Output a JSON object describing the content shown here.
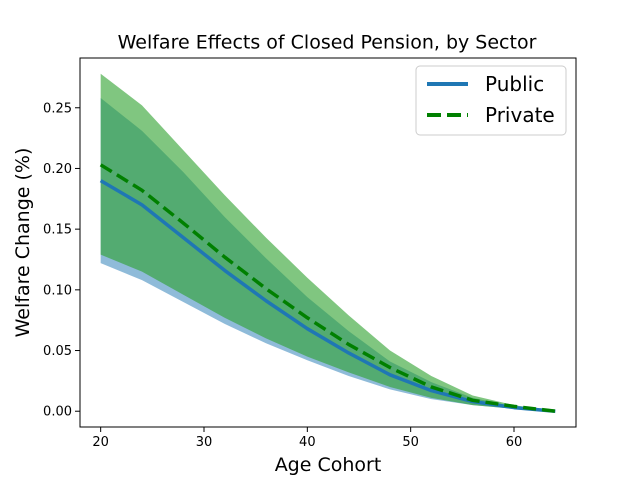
{
  "chart_data": {
    "type": "line",
    "title": "Welfare Effects of Closed Pension, by Sector",
    "xlabel": "Age Cohort",
    "ylabel": "Welfare Change (%)",
    "xlim": [
      18,
      66
    ],
    "ylim": [
      -0.013,
      0.291
    ],
    "xticks": [
      20,
      30,
      40,
      50,
      60
    ],
    "yticks": [
      0.0,
      0.05,
      0.1,
      0.15,
      0.2,
      0.25
    ],
    "ytick_labels": [
      "0.00",
      "0.05",
      "0.10",
      "0.15",
      "0.20",
      "0.25"
    ],
    "legend_position": "top-right",
    "x": [
      20,
      24,
      28,
      32,
      36,
      40,
      44,
      48,
      52,
      56,
      60,
      64
    ],
    "series": [
      {
        "name": "Public",
        "color": "#1f77b4",
        "style": "solid",
        "values": [
          0.19,
          0.17,
          0.143,
          0.116,
          0.091,
          0.068,
          0.048,
          0.03,
          0.017,
          0.008,
          0.003,
          0.0
        ],
        "band_low": [
          0.122,
          0.108,
          0.09,
          0.072,
          0.056,
          0.042,
          0.029,
          0.018,
          0.01,
          0.005,
          0.002,
          0.0
        ],
        "band_high": [
          0.258,
          0.231,
          0.197,
          0.16,
          0.126,
          0.094,
          0.066,
          0.041,
          0.024,
          0.011,
          0.004,
          0.0
        ],
        "band_color": "#1f77b4",
        "band_opacity": 0.5
      },
      {
        "name": "Private",
        "color": "#008000",
        "style": "dashed",
        "values": [
          0.203,
          0.182,
          0.155,
          0.127,
          0.101,
          0.077,
          0.055,
          0.036,
          0.02,
          0.009,
          0.004,
          0.0
        ],
        "band_low": [
          0.129,
          0.115,
          0.096,
          0.077,
          0.06,
          0.045,
          0.032,
          0.02,
          0.011,
          0.005,
          0.002,
          0.0
        ],
        "band_high": [
          0.278,
          0.252,
          0.215,
          0.178,
          0.143,
          0.11,
          0.079,
          0.05,
          0.029,
          0.013,
          0.005,
          0.0
        ],
        "band_color": "#2ca02c",
        "band_opacity": 0.6
      }
    ]
  }
}
